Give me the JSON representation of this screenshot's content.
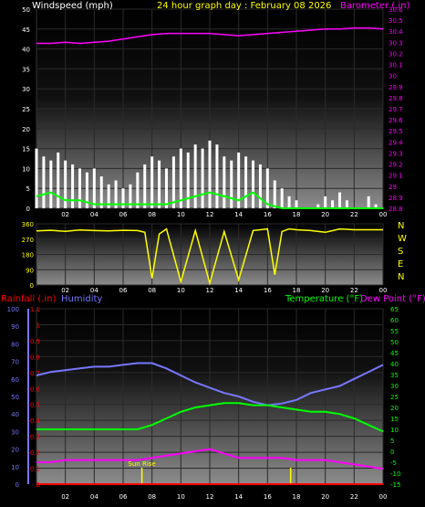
{
  "header": {
    "windspeed_label": "Windspeed (mph)",
    "title": "24 hour graph day : February 08 2026",
    "barometer_label": "Barometer (.in)"
  },
  "colors": {
    "windspeed_label": "#ffffff",
    "title": "#ffff00",
    "barometer": "#ff00ff",
    "wind_gust": "#ffffff",
    "wind_avg": "#00ff00",
    "direction": "#ffff00",
    "rainfall": "#ff0000",
    "humidity": "#7777ff",
    "temperature": "#00ff00",
    "dew_point": "#ff00ff",
    "sunrise": "#ffff00",
    "grid": "#222222",
    "axis_text": "#ffffff"
  },
  "x_axis": {
    "ticks": [
      "02",
      "04",
      "06",
      "08",
      "10",
      "12",
      "14",
      "16",
      "18",
      "20",
      "22",
      "00"
    ],
    "values": [
      2,
      4,
      6,
      8,
      10,
      12,
      14,
      16,
      18,
      20,
      22,
      24
    ]
  },
  "chart_data": [
    {
      "type": "line",
      "panel": "wind-barometer",
      "left_axis": {
        "label": "Windspeed (mph)",
        "ylim": [
          0,
          50
        ],
        "ticks": [
          0,
          5,
          10,
          15,
          20,
          25,
          30,
          35,
          40,
          45,
          50
        ]
      },
      "right_axis": {
        "label": "Barometer (.in)",
        "ylim": [
          28.8,
          30.6
        ],
        "ticks": [
          "28.8",
          "28.9",
          "29",
          "29.1",
          "29.2",
          "29.3",
          "29.4",
          "29.5",
          "29.6",
          "29.7",
          "29.8",
          "29.9",
          "30",
          "30.1",
          "30.2",
          "30.3",
          "30.4",
          "30.5",
          "30.6"
        ]
      },
      "series": [
        {
          "name": "Barometer",
          "axis": "right",
          "x": [
            0,
            1,
            2,
            3,
            4,
            5,
            6,
            7,
            8,
            9,
            10,
            11,
            12,
            13,
            14,
            15,
            16,
            17,
            18,
            19,
            20,
            21,
            22,
            23,
            24
          ],
          "values": [
            30.29,
            30.29,
            30.3,
            30.29,
            30.3,
            30.31,
            30.33,
            30.35,
            30.37,
            30.38,
            30.38,
            30.38,
            30.38,
            30.37,
            30.36,
            30.37,
            30.38,
            30.39,
            30.4,
            30.41,
            30.42,
            30.42,
            30.43,
            30.43,
            30.42
          ]
        },
        {
          "name": "Gust",
          "axis": "left",
          "x": [
            0,
            0.5,
            1,
            1.5,
            2,
            2.5,
            3,
            3.5,
            4,
            4.5,
            5,
            5.5,
            6,
            6.5,
            7,
            7.5,
            8,
            8.5,
            9,
            9.5,
            10,
            10.5,
            11,
            11.5,
            12,
            12.5,
            13,
            13.5,
            14,
            14.5,
            15,
            15.5,
            16,
            16.5,
            17,
            17.5,
            18,
            18.5,
            19,
            19.5,
            20,
            20.5,
            21,
            21.5,
            22,
            22.5,
            23,
            23.5,
            24
          ],
          "values": [
            15,
            13,
            12,
            14,
            12,
            11,
            10,
            9,
            10,
            8,
            6,
            7,
            5,
            6,
            9,
            11,
            13,
            12,
            10,
            13,
            15,
            14,
            16,
            15,
            17,
            16,
            13,
            12,
            14,
            13,
            12,
            11,
            10,
            7,
            5,
            3,
            2,
            0,
            0,
            1,
            3,
            2,
            4,
            2,
            0,
            0,
            3,
            1,
            0
          ]
        },
        {
          "name": "Average",
          "axis": "left",
          "x": [
            0,
            1,
            2,
            3,
            4,
            5,
            6,
            7,
            8,
            9,
            10,
            11,
            12,
            13,
            14,
            15,
            16,
            17,
            18,
            19,
            20,
            21,
            22,
            23,
            24
          ],
          "values": [
            3,
            4,
            2,
            2,
            1,
            1,
            1,
            1,
            1,
            1,
            2,
            3,
            4,
            3,
            2,
            4,
            1,
            0,
            0,
            0,
            0,
            0,
            0,
            0,
            0
          ]
        }
      ]
    },
    {
      "type": "line",
      "panel": "wind-direction",
      "left_axis": {
        "ticks": [
          0,
          90,
          180,
          270,
          360
        ],
        "ylim": [
          0,
          360
        ]
      },
      "compass": [
        "N",
        "W",
        "S",
        "E",
        "N"
      ],
      "series": [
        {
          "name": "Direction",
          "x": [
            0,
            1,
            2,
            3,
            4,
            5,
            6,
            7,
            7.5,
            8,
            8.5,
            9,
            10,
            11,
            12,
            13,
            14,
            15,
            16,
            16.5,
            17,
            17.5,
            18,
            19,
            20,
            21,
            22,
            23,
            24
          ],
          "values": [
            318,
            322,
            316,
            324,
            320,
            318,
            322,
            320,
            310,
            40,
            300,
            330,
            20,
            320,
            10,
            315,
            30,
            320,
            330,
            60,
            315,
            330,
            325,
            320,
            310,
            330,
            325,
            325,
            325
          ]
        }
      ]
    },
    {
      "type": "line",
      "panel": "rain-humidity-temperature",
      "axes": {
        "rainfall": {
          "label": "Rainfall (.in)",
          "ylim": [
            0,
            1.1
          ],
          "ticks": [
            "0",
            "0.1",
            "0.2",
            "0.3",
            "0.4",
            "0.5",
            "0.6",
            "0.7",
            "0.8",
            "0.9",
            "1",
            "1.1"
          ]
        },
        "humidity": {
          "label": "Humidity",
          "ylim": [
            0,
            100
          ],
          "ticks": [
            0,
            10,
            20,
            30,
            40,
            50,
            60,
            70,
            80,
            90,
            100
          ]
        },
        "temperature": {
          "label": "Temperature (°F)",
          "dew_label": "Dew Point (°F)",
          "ylim": [
            -15,
            65
          ],
          "ticks": [
            -15,
            -10,
            -5,
            0,
            5,
            10,
            15,
            20,
            25,
            30,
            35,
            40,
            45,
            50,
            55,
            60,
            65
          ]
        }
      },
      "annotation": {
        "text": "Sun Rise",
        "x": 7.3
      },
      "sunset_x": 17.6,
      "series": [
        {
          "name": "Humidity",
          "axis": "humidity",
          "x": [
            0,
            1,
            2,
            3,
            4,
            5,
            6,
            7,
            8,
            9,
            10,
            11,
            12,
            13,
            14,
            15,
            16,
            17,
            18,
            19,
            20,
            21,
            22,
            23,
            24
          ],
          "values": [
            62,
            64,
            65,
            66,
            67,
            67,
            68,
            69,
            69,
            66,
            62,
            58,
            55,
            52,
            50,
            47,
            45,
            46,
            48,
            52,
            54,
            56,
            60,
            64,
            68
          ]
        },
        {
          "name": "Temperature",
          "axis": "temperature",
          "x": [
            0,
            1,
            2,
            3,
            4,
            5,
            6,
            7,
            8,
            9,
            10,
            11,
            12,
            13,
            14,
            15,
            16,
            17,
            18,
            19,
            20,
            21,
            22,
            23,
            24
          ],
          "values": [
            10,
            10,
            10,
            10,
            10,
            10,
            10,
            10,
            12,
            15,
            18,
            20,
            21,
            22,
            22,
            21,
            21,
            20,
            19,
            18,
            18,
            17,
            15,
            12,
            9
          ]
        },
        {
          "name": "Dew Point",
          "axis": "temperature",
          "x": [
            0,
            1,
            2,
            3,
            4,
            5,
            6,
            7,
            8,
            9,
            10,
            11,
            12,
            13,
            14,
            15,
            16,
            17,
            18,
            19,
            20,
            21,
            22,
            23,
            24
          ],
          "values": [
            -5,
            -5,
            -4,
            -4,
            -4,
            -4,
            -4,
            -4,
            -3,
            -2,
            -1,
            0,
            1,
            -1,
            -3,
            -3,
            -3,
            -3,
            -4,
            -4,
            -4,
            -5,
            -6,
            -7,
            -8
          ]
        },
        {
          "name": "Rainfall",
          "axis": "rainfall",
          "x": [
            0,
            24
          ],
          "values": [
            0,
            0
          ]
        }
      ]
    }
  ]
}
